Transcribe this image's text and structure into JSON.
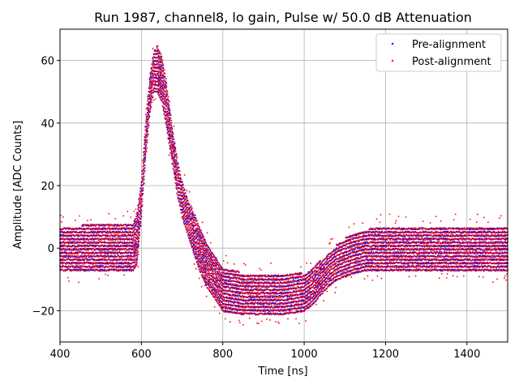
{
  "chart_data": {
    "type": "scatter",
    "title": "Run 1987, channel8, lo gain, Pulse w/ 50.0 dB Attenuation",
    "xlabel": "Time [ns]",
    "ylabel": "Amplitude [ADC Counts]",
    "xlim": [
      400,
      1500
    ],
    "ylim": [
      -30,
      70
    ],
    "xticks": [
      400,
      600,
      800,
      1000,
      1200,
      1400
    ],
    "yticks": [
      -20,
      0,
      20,
      40,
      60
    ],
    "grid": true,
    "legend_position": "top-right",
    "series": [
      {
        "name": "Pre-alignment",
        "color": "#0000ff",
        "marker": "dot"
      },
      {
        "name": "Post-alignment",
        "color": "#ff0000",
        "marker": "dot"
      }
    ],
    "envelope": {
      "x": [
        400,
        580,
        590,
        600,
        610,
        620,
        630,
        640,
        650,
        660,
        670,
        680,
        690,
        700,
        720,
        740,
        760,
        780,
        800,
        850,
        900,
        950,
        1000,
        1020,
        1040,
        1060,
        1080,
        1100,
        1120,
        1150,
        1200,
        1300,
        1400,
        1500
      ],
      "upper": [
        7,
        8,
        12,
        22,
        40,
        55,
        63,
        65,
        62,
        55,
        45,
        35,
        28,
        22,
        14,
        8,
        2,
        -2,
        -6,
        -8,
        -8,
        -8,
        -8,
        -6,
        -4,
        -2,
        1,
        3,
        5,
        6,
        7,
        7,
        7,
        7
      ],
      "lower": [
        -7,
        -7,
        -5,
        10,
        28,
        42,
        50,
        50,
        47,
        40,
        32,
        24,
        16,
        10,
        2,
        -6,
        -12,
        -16,
        -20,
        -21,
        -21,
        -21,
        -20,
        -18,
        -15,
        -12,
        -10,
        -9,
        -8,
        -7,
        -7,
        -7,
        -7,
        -7
      ]
    }
  }
}
